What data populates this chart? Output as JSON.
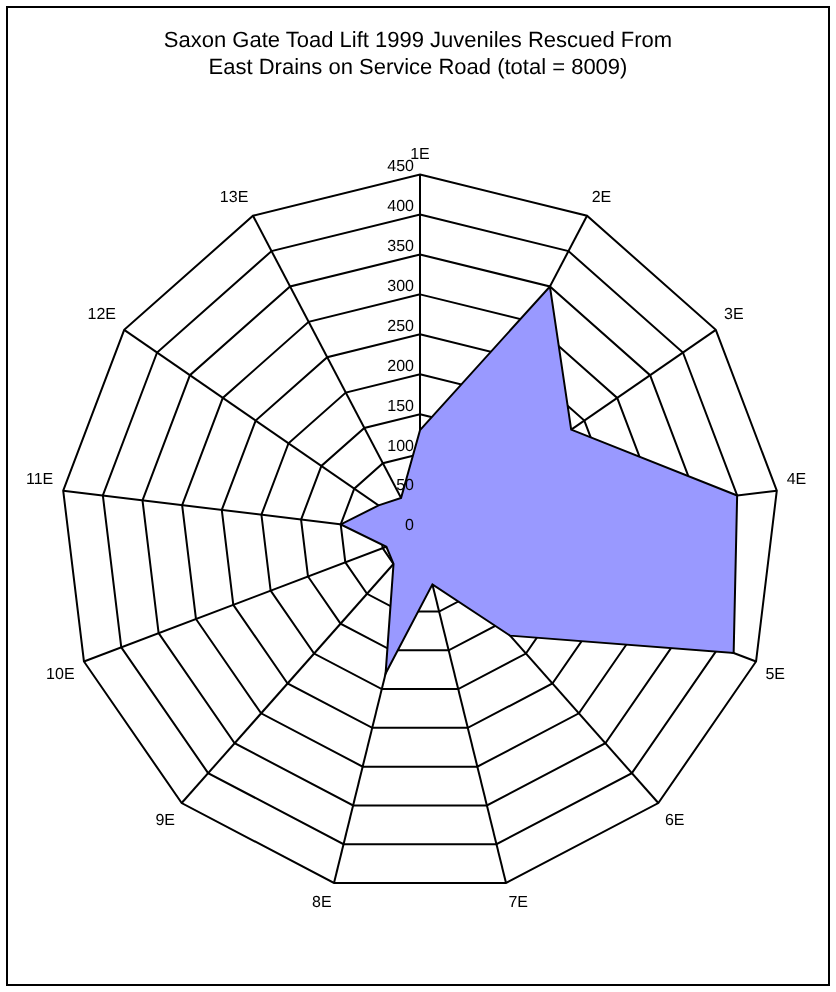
{
  "chart_data": {
    "type": "radar",
    "title": [
      "Saxon Gate Toad Lift 1999 Juveniles Rescued From",
      "East Drains on Service Road (total = 8009)"
    ],
    "categories": [
      "1E",
      "2E",
      "3E",
      "4E",
      "5E",
      "6E",
      "7E",
      "8E",
      "9E",
      "10E",
      "11E",
      "12E",
      "13E"
    ],
    "series": [
      {
        "color": "#9999ff",
        "values": [
          130,
          350,
          230,
          400,
          420,
          170,
          65,
          180,
          50,
          45,
          100,
          63,
          51
        ]
      }
    ],
    "ylim": [
      0,
      450
    ],
    "yticks": [
      0,
      50,
      100,
      150,
      200,
      250,
      300,
      350,
      400,
      450
    ],
    "grid": true,
    "legend": false,
    "marker": "none"
  }
}
